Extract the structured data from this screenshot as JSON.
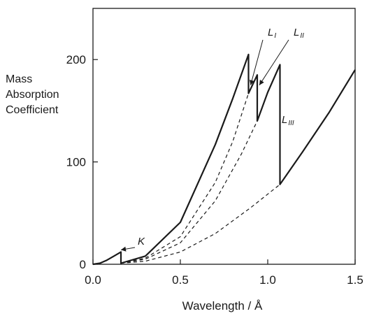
{
  "chart_data": {
    "type": "line",
    "xlabel": "Wavelength / Å",
    "ylabel_lines": [
      "Mass",
      "Absorption",
      "Coefficient"
    ],
    "xlim": [
      0,
      1.5
    ],
    "ylim": [
      0,
      250
    ],
    "xticks": [
      "0.0",
      "0.5",
      "1.0",
      "1.5"
    ],
    "xtick_values": [
      0,
      0.5,
      1.0,
      1.5
    ],
    "yticks": [
      "0",
      "100",
      "200"
    ],
    "ytick_values": [
      0,
      100,
      200
    ],
    "grid": false,
    "series": [
      {
        "style": "solid",
        "x": [
          0,
          0.04,
          0.08,
          0.12,
          0.16,
          0.16,
          0.3,
          0.5,
          0.7,
          0.8,
          0.89,
          0.89,
          0.94,
          0.94,
          1.0,
          1.07,
          1.07,
          1.2,
          1.35,
          1.5
        ],
        "y": [
          0,
          1,
          4,
          8,
          12,
          1,
          8,
          41,
          117,
          162,
          205,
          167,
          185,
          140,
          168,
          195,
          78,
          110,
          148,
          190
        ]
      },
      {
        "style": "dashed",
        "x": [
          0.16,
          0.3,
          0.5,
          0.7,
          0.8,
          0.89
        ],
        "y": [
          1,
          6,
          27,
          80,
          120,
          167
        ]
      },
      {
        "style": "dashed",
        "x": [
          0.16,
          0.3,
          0.5,
          0.7,
          0.85,
          0.94
        ],
        "y": [
          1,
          5,
          21,
          62,
          108,
          140
        ]
      },
      {
        "style": "dashed",
        "x": [
          0.16,
          0.3,
          0.5,
          0.7,
          0.9,
          1.07
        ],
        "y": [
          1,
          3,
          12,
          30,
          55,
          78
        ]
      }
    ],
    "annotations": [
      {
        "id": "k",
        "label": "K",
        "sub": "",
        "x": 0.16,
        "y": 12
      },
      {
        "id": "l1",
        "label": "L",
        "sub": "I",
        "x": 0.89,
        "y": 175
      },
      {
        "id": "l2",
        "label": "L",
        "sub": "II",
        "x": 0.94,
        "y": 175
      },
      {
        "id": "l3",
        "label": "L",
        "sub": "III",
        "x": 1.07,
        "y": 140
      }
    ]
  }
}
